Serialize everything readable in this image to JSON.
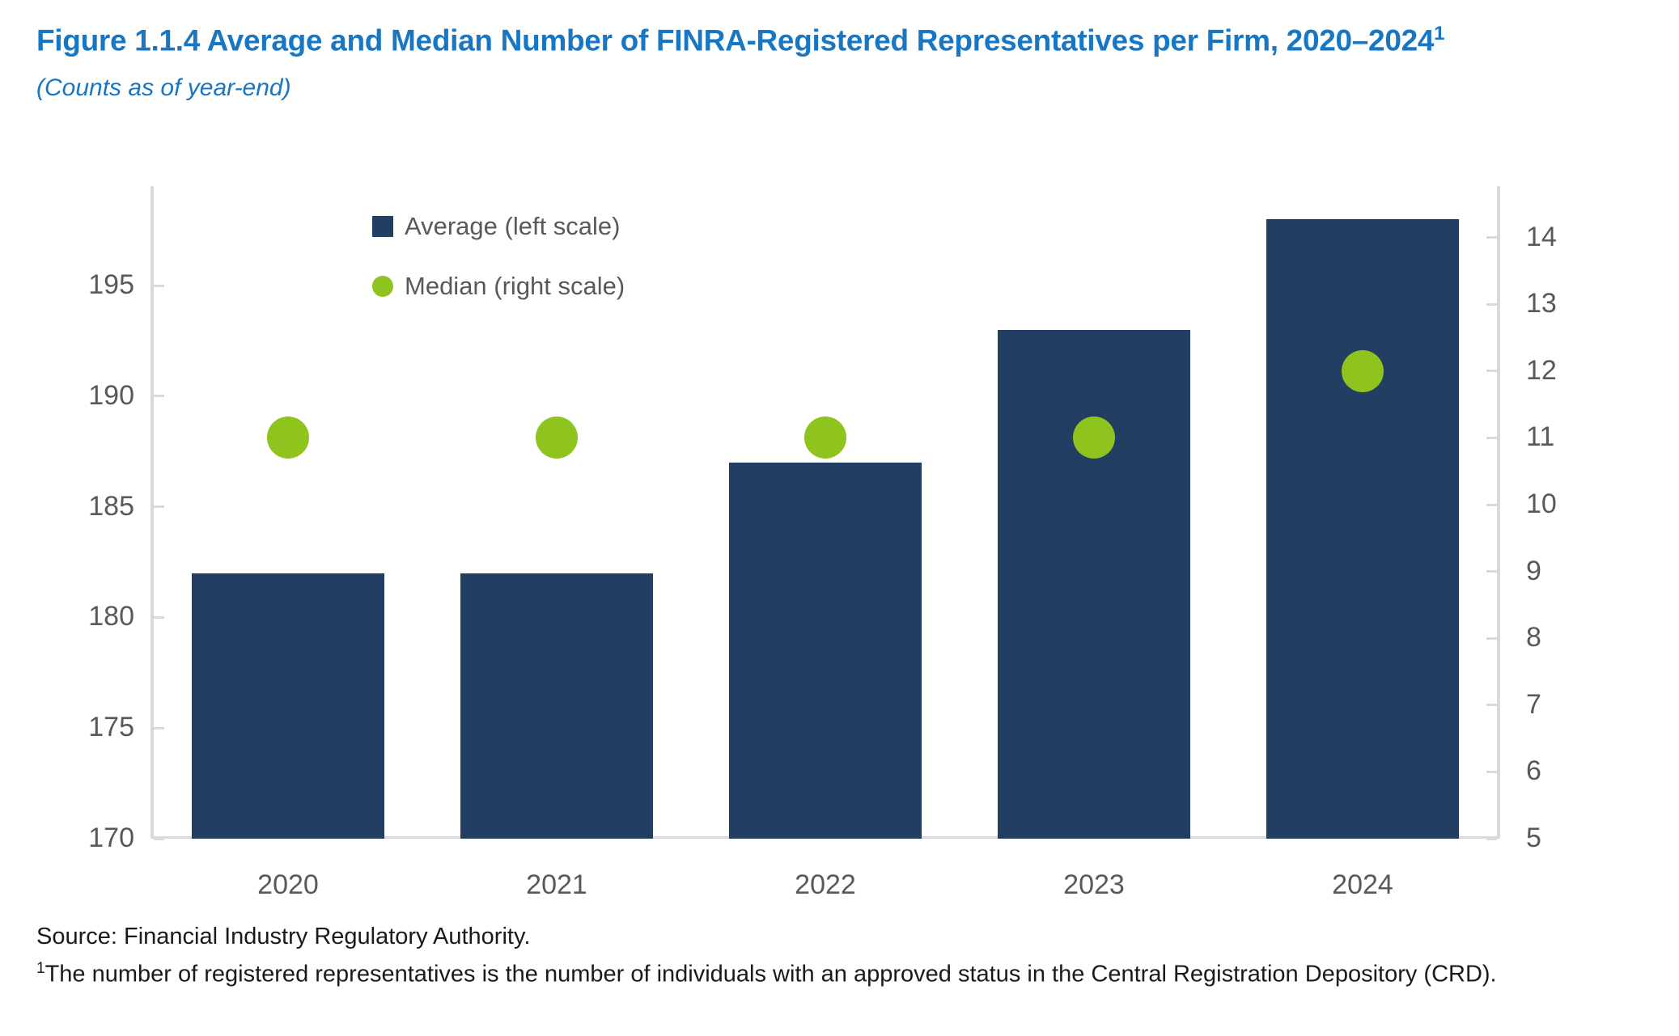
{
  "header": {
    "title_text": "Figure 1.1.4 Average and Median Number of FINRA-Registered Representatives per Firm, 2020–2024",
    "title_sup": "1",
    "subtitle": "(Counts as of year-end)"
  },
  "footer": {
    "source": "Source: Financial Industry Regulatory Authority.",
    "footnote_sup": "1",
    "footnote_text": "The number of registered representatives is the number of individuals with an approved status in the Central Registration Depository (CRD)."
  },
  "colors": {
    "title_blue": "#1777C4",
    "bar_navy": "#223E62",
    "dot_green": "#8FC31D",
    "axis_line_gray": "#D9D9D9",
    "tick_text_gray": "#595959",
    "footer_text": "#1A1A1A"
  },
  "chart_data": {
    "type": "bar",
    "subtype": "dual-axis-bar-and-scatter",
    "categories": [
      "2020",
      "2021",
      "2022",
      "2023",
      "2024"
    ],
    "series": [
      {
        "name": "Average (left scale)",
        "type": "bar",
        "axis": "left",
        "marker": "square",
        "color_key": "bar_navy",
        "values": [
          182,
          182,
          187,
          193,
          198
        ]
      },
      {
        "name": "Median (right scale)",
        "type": "scatter",
        "axis": "right",
        "marker": "circle",
        "color_key": "dot_green",
        "values": [
          11,
          11,
          11,
          11,
          12
        ]
      }
    ],
    "left_axis": {
      "min": 170,
      "max": 199.5,
      "ticks": [
        170,
        175,
        180,
        185,
        190,
        195
      ]
    },
    "right_axis": {
      "min": 5,
      "max": 14.77,
      "ticks": [
        5,
        6,
        7,
        8,
        9,
        10,
        11,
        12,
        13,
        14
      ]
    },
    "legend_position": "inside-top-left",
    "grid": false
  }
}
